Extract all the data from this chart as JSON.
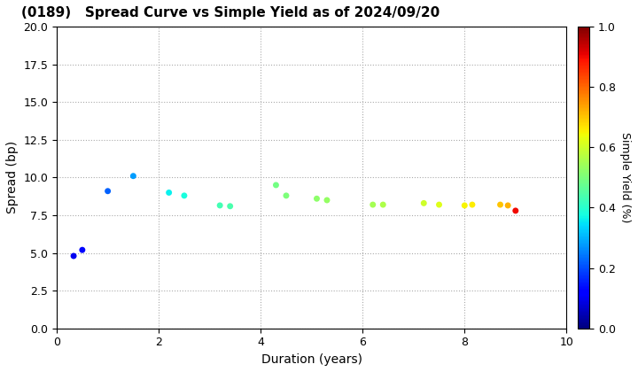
{
  "title": "(0189)   Spread Curve vs Simple Yield as of 2024/09/20",
  "xlabel": "Duration (years)",
  "ylabel": "Spread (bp)",
  "colorbar_label": "Simple Yield (%)",
  "xlim": [
    0,
    10
  ],
  "ylim": [
    0,
    20
  ],
  "xticks": [
    0,
    2,
    4,
    6,
    8,
    10
  ],
  "yticks": [
    0.0,
    2.5,
    5.0,
    7.5,
    10.0,
    12.5,
    15.0,
    17.5,
    20.0
  ],
  "colorbar_ticks": [
    0.0,
    0.2,
    0.4,
    0.6,
    0.8,
    1.0
  ],
  "colorbar_min": 0.0,
  "colorbar_max": 1.0,
  "points": [
    {
      "duration": 0.33,
      "spread": 4.8,
      "simple_yield": 0.1
    },
    {
      "duration": 0.5,
      "spread": 5.2,
      "simple_yield": 0.13
    },
    {
      "duration": 1.0,
      "spread": 9.1,
      "simple_yield": 0.22
    },
    {
      "duration": 1.5,
      "spread": 10.1,
      "simple_yield": 0.28
    },
    {
      "duration": 2.2,
      "spread": 9.0,
      "simple_yield": 0.36
    },
    {
      "duration": 2.5,
      "spread": 8.8,
      "simple_yield": 0.38
    },
    {
      "duration": 3.2,
      "spread": 8.15,
      "simple_yield": 0.43
    },
    {
      "duration": 3.4,
      "spread": 8.1,
      "simple_yield": 0.44
    },
    {
      "duration": 4.3,
      "spread": 9.5,
      "simple_yield": 0.49
    },
    {
      "duration": 4.5,
      "spread": 8.8,
      "simple_yield": 0.5
    },
    {
      "duration": 5.1,
      "spread": 8.6,
      "simple_yield": 0.52
    },
    {
      "duration": 5.3,
      "spread": 8.5,
      "simple_yield": 0.53
    },
    {
      "duration": 6.2,
      "spread": 8.2,
      "simple_yield": 0.55
    },
    {
      "duration": 6.4,
      "spread": 8.2,
      "simple_yield": 0.56
    },
    {
      "duration": 7.2,
      "spread": 8.3,
      "simple_yield": 0.6
    },
    {
      "duration": 7.5,
      "spread": 8.2,
      "simple_yield": 0.62
    },
    {
      "duration": 8.0,
      "spread": 8.15,
      "simple_yield": 0.65
    },
    {
      "duration": 8.15,
      "spread": 8.2,
      "simple_yield": 0.66
    },
    {
      "duration": 8.7,
      "spread": 8.2,
      "simple_yield": 0.7
    },
    {
      "duration": 8.85,
      "spread": 8.15,
      "simple_yield": 0.72
    },
    {
      "duration": 9.0,
      "spread": 7.8,
      "simple_yield": 0.9
    }
  ],
  "marker_size": 25,
  "background_color": "#ffffff",
  "grid_color": "#aaaaaa",
  "grid_linestyle": ":",
  "colormap": "jet",
  "title_fontsize": 11,
  "label_fontsize": 10,
  "tick_fontsize": 9,
  "cbar_fontsize": 9
}
